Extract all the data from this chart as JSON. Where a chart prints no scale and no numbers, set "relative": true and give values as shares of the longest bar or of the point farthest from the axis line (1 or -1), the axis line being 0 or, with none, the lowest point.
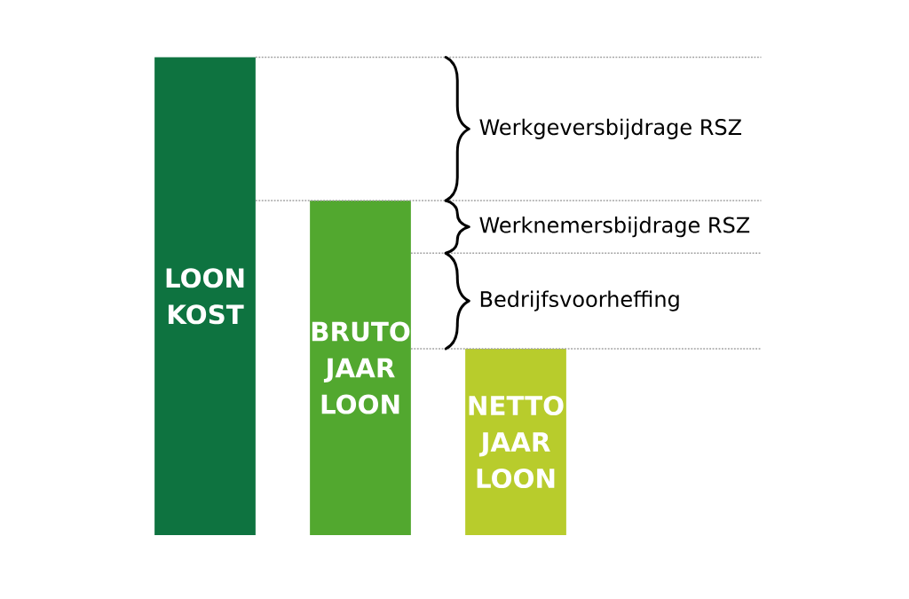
{
  "chart_data": {
    "type": "bar",
    "relative": true,
    "categories": [
      "LOON KOST",
      "BRUTO JAAR LOON",
      "NETTO JAAR LOON"
    ],
    "values": [
      1,
      0.7,
      0.39
    ],
    "colors": [
      "#0e7340",
      "#52a82f",
      "#b8cc2c"
    ],
    "ref_lines": [
      {
        "axis": "y",
        "value": 1,
        "color": "#a0a0a0",
        "line_style": "dotted"
      },
      {
        "axis": "y",
        "value": 0.7,
        "color": "#a0a0a0",
        "line_style": "dotted"
      },
      {
        "axis": "y",
        "value": 0.59,
        "color": "#a0a0a0",
        "line_style": "dotted"
      },
      {
        "axis": "y",
        "value": 0.39,
        "color": "#a0a0a0",
        "line_style": "dotted"
      }
    ],
    "annotations": [
      "Werkgeversbijdrage RSZ",
      "Werknemersbijdrage RSZ",
      "Bedrijfsvoorheffing"
    ]
  }
}
